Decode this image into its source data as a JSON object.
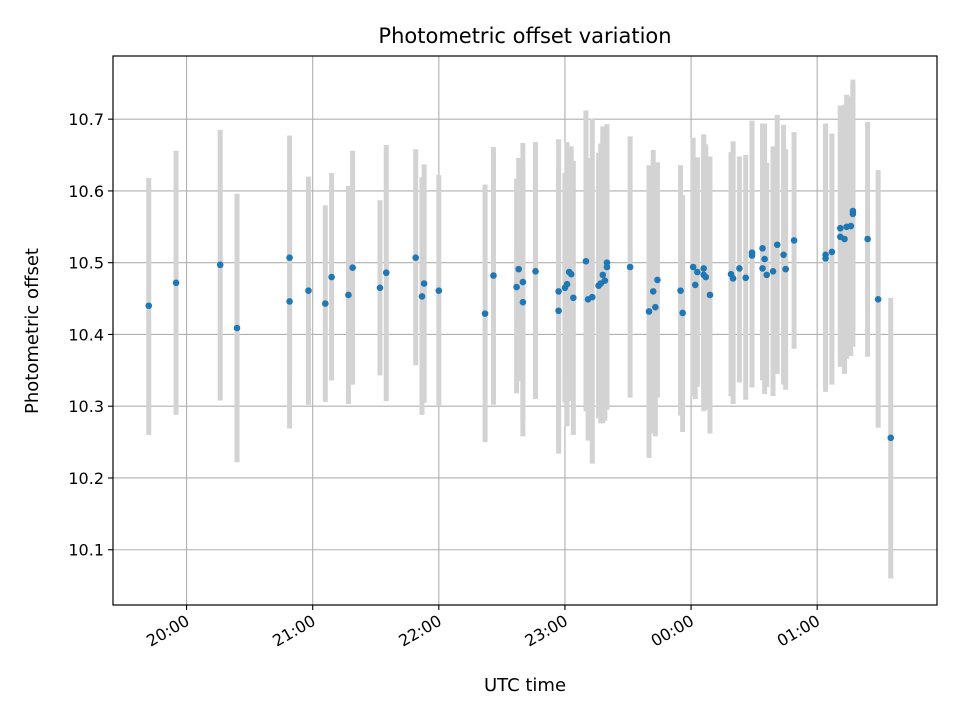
{
  "chart_data": {
    "type": "scatter",
    "title": "Photometric offset variation",
    "xlabel": "UTC time",
    "ylabel": "Photometric offset",
    "x_format": "HH:MM UTC",
    "xlim": [
      "19:25",
      "01:57"
    ],
    "ylim": [
      10.023,
      10.788
    ],
    "xticks": [
      "20:00",
      "21:00",
      "22:00",
      "23:00",
      "00:00",
      "01:00"
    ],
    "yticks": [
      "10.1",
      "10.2",
      "10.3",
      "10.4",
      "10.5",
      "10.6",
      "10.7"
    ],
    "grid": true,
    "colors": {
      "marker": "#1f77b4",
      "errorbar": "#d3d3d3",
      "grid": "#b0b0b0"
    },
    "series": [
      {
        "points": [
          {
            "x": "19:42",
            "y": 10.44,
            "ymin": 10.26,
            "ymax": 10.618
          },
          {
            "x": "19:55",
            "y": 10.472,
            "ymin": 10.288,
            "ymax": 10.656
          },
          {
            "x": "20:16",
            "y": 10.497,
            "ymin": 10.308,
            "ymax": 10.685
          },
          {
            "x": "20:24",
            "y": 10.409,
            "ymin": 10.222,
            "ymax": 10.596
          },
          {
            "x": "20:49",
            "y": 10.446,
            "ymin": 10.269,
            "ymax": 10.62
          },
          {
            "x": "20:49",
            "y": 10.507,
            "ymin": 10.338,
            "ymax": 10.677
          },
          {
            "x": "20:58",
            "y": 10.461,
            "ymin": 10.302,
            "ymax": 10.62
          },
          {
            "x": "21:06",
            "y": 10.443,
            "ymin": 10.306,
            "ymax": 10.58
          },
          {
            "x": "21:09",
            "y": 10.48,
            "ymin": 10.336,
            "ymax": 10.625
          },
          {
            "x": "21:17",
            "y": 10.455,
            "ymin": 10.303,
            "ymax": 10.607
          },
          {
            "x": "21:19",
            "y": 10.493,
            "ymin": 10.33,
            "ymax": 10.656
          },
          {
            "x": "21:32",
            "y": 10.465,
            "ymin": 10.343,
            "ymax": 10.587
          },
          {
            "x": "21:35",
            "y": 10.486,
            "ymin": 10.307,
            "ymax": 10.664
          },
          {
            "x": "21:49",
            "y": 10.507,
            "ymin": 10.357,
            "ymax": 10.658
          },
          {
            "x": "21:52",
            "y": 10.453,
            "ymin": 10.288,
            "ymax": 10.619
          },
          {
            "x": "21:53",
            "y": 10.471,
            "ymin": 10.305,
            "ymax": 10.637
          },
          {
            "x": "22:00",
            "y": 10.461,
            "ymin": 10.3,
            "ymax": 10.622
          },
          {
            "x": "22:22",
            "y": 10.429,
            "ymin": 10.25,
            "ymax": 10.609
          },
          {
            "x": "22:26",
            "y": 10.482,
            "ymin": 10.302,
            "ymax": 10.661
          },
          {
            "x": "22:37",
            "y": 10.466,
            "ymin": 10.318,
            "ymax": 10.617
          },
          {
            "x": "22:38",
            "y": 10.491,
            "ymin": 10.335,
            "ymax": 10.646
          },
          {
            "x": "22:40",
            "y": 10.473,
            "ymin": 10.28,
            "ymax": 10.667
          },
          {
            "x": "22:40",
            "y": 10.445,
            "ymin": 10.258,
            "ymax": 10.633
          },
          {
            "x": "22:46",
            "y": 10.488,
            "ymin": 10.31,
            "ymax": 10.668
          },
          {
            "x": "22:57",
            "y": 10.433,
            "ymin": 10.234,
            "ymax": 10.632
          },
          {
            "x": "22:57",
            "y": 10.46,
            "ymin": 10.248,
            "ymax": 10.672
          },
          {
            "x": "23:00",
            "y": 10.465,
            "ymin": 10.305,
            "ymax": 10.625
          },
          {
            "x": "23:01",
            "y": 10.47,
            "ymin": 10.272,
            "ymax": 10.668
          },
          {
            "x": "23:02",
            "y": 10.487,
            "ymin": 10.34,
            "ymax": 10.634
          },
          {
            "x": "23:03",
            "y": 10.484,
            "ymin": 10.307,
            "ymax": 10.662
          },
          {
            "x": "23:04",
            "y": 10.451,
            "ymin": 10.26,
            "ymax": 10.642
          },
          {
            "x": "23:10",
            "y": 10.502,
            "ymin": 10.293,
            "ymax": 10.712
          },
          {
            "x": "23:11",
            "y": 10.449,
            "ymin": 10.252,
            "ymax": 10.646
          },
          {
            "x": "23:13",
            "y": 10.452,
            "ymin": 10.22,
            "ymax": 10.701
          },
          {
            "x": "23:16",
            "y": 10.468,
            "ymin": 10.283,
            "ymax": 10.653
          },
          {
            "x": "23:17",
            "y": 10.471,
            "ymin": 10.276,
            "ymax": 10.666
          },
          {
            "x": "23:18",
            "y": 10.483,
            "ymin": 10.276,
            "ymax": 10.69
          },
          {
            "x": "23:19",
            "y": 10.475,
            "ymin": 10.28,
            "ymax": 10.671
          },
          {
            "x": "23:20",
            "y": 10.5,
            "ymin": 10.3,
            "ymax": 10.692
          },
          {
            "x": "23:20",
            "y": 10.494,
            "ymin": 10.295,
            "ymax": 10.693
          },
          {
            "x": "23:31",
            "y": 10.494,
            "ymin": 10.312,
            "ymax": 10.676
          },
          {
            "x": "23:40",
            "y": 10.432,
            "ymin": 10.228,
            "ymax": 10.636
          },
          {
            "x": "23:42",
            "y": 10.46,
            "ymin": 10.262,
            "ymax": 10.657
          },
          {
            "x": "23:43",
            "y": 10.438,
            "ymin": 10.258,
            "ymax": 10.618
          },
          {
            "x": "23:44",
            "y": 10.476,
            "ymin": 10.312,
            "ymax": 10.64
          },
          {
            "x": "23:55",
            "y": 10.461,
            "ymin": 10.287,
            "ymax": 10.636
          },
          {
            "x": "23:56",
            "y": 10.43,
            "ymin": 10.264,
            "ymax": 10.594
          },
          {
            "x": "00:01",
            "y": 10.494,
            "ymin": 10.314,
            "ymax": 10.674
          },
          {
            "x": "00:02",
            "y": 10.469,
            "ymin": 10.31,
            "ymax": 10.628
          },
          {
            "x": "00:03",
            "y": 10.487,
            "ymin": 10.327,
            "ymax": 10.647
          },
          {
            "x": "00:06",
            "y": 10.483,
            "ymin": 10.293,
            "ymax": 10.679
          },
          {
            "x": "00:06",
            "y": 10.492,
            "ymin": 10.31,
            "ymax": 10.677
          },
          {
            "x": "00:07",
            "y": 10.48,
            "ymin": 10.295,
            "ymax": 10.665
          },
          {
            "x": "00:09",
            "y": 10.455,
            "ymin": 10.262,
            "ymax": 10.648
          },
          {
            "x": "00:19",
            "y": 10.484,
            "ymin": 10.314,
            "ymax": 10.654
          },
          {
            "x": "00:20",
            "y": 10.478,
            "ymin": 10.303,
            "ymax": 10.669
          },
          {
            "x": "00:23",
            "y": 10.492,
            "ymin": 10.333,
            "ymax": 10.648
          },
          {
            "x": "00:26",
            "y": 10.479,
            "ymin": 10.309,
            "ymax": 10.65
          },
          {
            "x": "00:29",
            "y": 10.51,
            "ymin": 10.326,
            "ymax": 10.694
          },
          {
            "x": "00:29",
            "y": 10.514,
            "ymin": 10.33,
            "ymax": 10.698
          },
          {
            "x": "00:34",
            "y": 10.52,
            "ymin": 10.346,
            "ymax": 10.694
          },
          {
            "x": "00:34",
            "y": 10.492,
            "ymin": 10.336,
            "ymax": 10.648
          },
          {
            "x": "00:35",
            "y": 10.505,
            "ymin": 10.317,
            "ymax": 10.694
          },
          {
            "x": "00:36",
            "y": 10.483,
            "ymin": 10.327,
            "ymax": 10.639
          },
          {
            "x": "00:39",
            "y": 10.488,
            "ymin": 10.314,
            "ymax": 10.662
          },
          {
            "x": "00:41",
            "y": 10.525,
            "ymin": 10.345,
            "ymax": 10.706
          },
          {
            "x": "00:44",
            "y": 10.511,
            "ymin": 10.33,
            "ymax": 10.692
          },
          {
            "x": "00:45",
            "y": 10.491,
            "ymin": 10.323,
            "ymax": 10.658
          },
          {
            "x": "00:49",
            "y": 10.531,
            "ymin": 10.38,
            "ymax": 10.682
          },
          {
            "x": "01:04",
            "y": 10.511,
            "ymin": 10.327,
            "ymax": 10.694
          },
          {
            "x": "01:04",
            "y": 10.506,
            "ymin": 10.32,
            "ymax": 10.692
          },
          {
            "x": "01:07",
            "y": 10.515,
            "ymin": 10.33,
            "ymax": 10.68
          },
          {
            "x": "01:11",
            "y": 10.536,
            "ymin": 10.355,
            "ymax": 10.714
          },
          {
            "x": "01:11",
            "y": 10.548,
            "ymin": 10.377,
            "ymax": 10.719
          },
          {
            "x": "01:13",
            "y": 10.533,
            "ymin": 10.345,
            "ymax": 10.72
          },
          {
            "x": "01:14",
            "y": 10.55,
            "ymin": 10.366,
            "ymax": 10.734
          },
          {
            "x": "01:16",
            "y": 10.551,
            "ymin": 10.37,
            "ymax": 10.732
          },
          {
            "x": "01:17",
            "y": 10.572,
            "ymin": 10.396,
            "ymax": 10.748
          },
          {
            "x": "01:17",
            "y": 10.568,
            "ymin": 10.383,
            "ymax": 10.755
          },
          {
            "x": "01:24",
            "y": 10.533,
            "ymin": 10.369,
            "ymax": 10.696
          },
          {
            "x": "01:29",
            "y": 10.449,
            "ymin": 10.27,
            "ymax": 10.629
          },
          {
            "x": "01:35",
            "y": 10.256,
            "ymin": 10.06,
            "ymax": 10.451
          }
        ]
      }
    ]
  }
}
